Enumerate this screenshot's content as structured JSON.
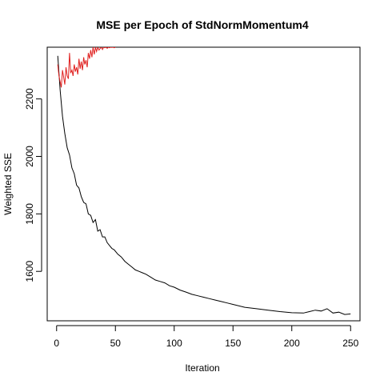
{
  "chart_data": {
    "type": "line",
    "title": "MSE per Epoch of StdNormMomentum4",
    "xlabel": "Iteration",
    "ylabel": "Weighted SSE",
    "xlim": [
      -8,
      258
    ],
    "ylim": [
      1428,
      2380
    ],
    "x_ticks": [
      0,
      50,
      100,
      150,
      200,
      250
    ],
    "y_ticks": [
      1600,
      1800,
      2000,
      2200
    ],
    "grid": false,
    "legend": "none",
    "series": [
      {
        "color": "#000000",
        "x": [
          1,
          3,
          5,
          7,
          9,
          11,
          13,
          15,
          17,
          19,
          21,
          23,
          25,
          27,
          29,
          31,
          33,
          35,
          37,
          39,
          41,
          43,
          45,
          47,
          49,
          52,
          55,
          58,
          61,
          64,
          67,
          70,
          73,
          76,
          80,
          84,
          88,
          92,
          96,
          100,
          105,
          110,
          115,
          120,
          125,
          130,
          135,
          140,
          145,
          150,
          160,
          170,
          180,
          190,
          200,
          210,
          215,
          220,
          225,
          230,
          235,
          240,
          245,
          250
        ],
        "values": [
          2350,
          2230,
          2140,
          2080,
          2030,
          2005,
          1960,
          1940,
          1900,
          1890,
          1860,
          1840,
          1835,
          1800,
          1795,
          1770,
          1780,
          1740,
          1745,
          1720,
          1720,
          1700,
          1690,
          1680,
          1675,
          1660,
          1650,
          1635,
          1625,
          1615,
          1605,
          1600,
          1595,
          1590,
          1580,
          1570,
          1565,
          1560,
          1550,
          1545,
          1535,
          1528,
          1520,
          1515,
          1510,
          1505,
          1500,
          1495,
          1490,
          1485,
          1475,
          1470,
          1465,
          1460,
          1456,
          1455,
          1460,
          1465,
          1462,
          1470,
          1455,
          1458,
          1450,
          1452
        ]
      },
      {
        "color": "#e0201f",
        "x": [
          1,
          2,
          3,
          4,
          5,
          6,
          7,
          8,
          9,
          10,
          11,
          12,
          13,
          14,
          15,
          16,
          17,
          18,
          19,
          20,
          21,
          22,
          23,
          24,
          25,
          26,
          27,
          28,
          29,
          30,
          31,
          32,
          33,
          34,
          35,
          36,
          37,
          38,
          39,
          40,
          41,
          42,
          43,
          44,
          45,
          46,
          47,
          48,
          49,
          50
        ],
        "values": [
          2320,
          2280,
          2260,
          2240,
          2300,
          2275,
          2250,
          2310,
          2280,
          2270,
          2360,
          2290,
          2300,
          2280,
          2320,
          2295,
          2310,
          2285,
          2340,
          2305,
          2330,
          2300,
          2345,
          2320,
          2335,
          2310,
          2360,
          2340,
          2370,
          2345,
          2380,
          2355,
          2380,
          2365,
          2380,
          2370,
          2375,
          2380,
          2372,
          2380,
          2378,
          2380,
          2376,
          2380,
          2378,
          2380,
          2379,
          2380,
          2378,
          2380
        ]
      }
    ]
  }
}
